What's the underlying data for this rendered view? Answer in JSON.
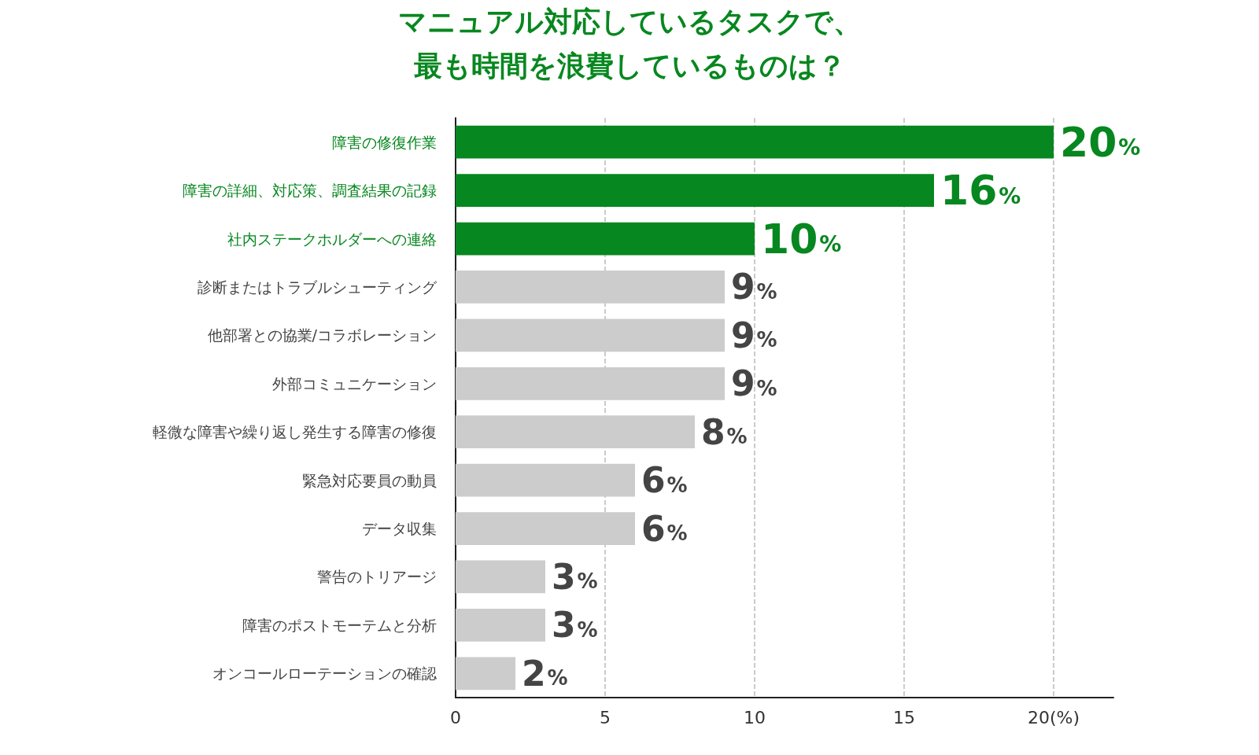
{
  "chart_data": {
    "type": "bar",
    "orientation": "horizontal",
    "title": "マニュアル対応しているタスクで、",
    "subtitle": "最も時間を浪費しているものは？",
    "categories": [
      "障害の修復作業",
      "障害の詳細、対応策、調査結果の記録",
      "社内ステークホルダーへの連絡",
      "診断またはトラブルシューティング",
      "他部署との協業/コラボレーション",
      "外部コミュニケーション",
      "軽微な障害や繰り返し発生する障害の修復",
      "緊急対応要員の動員",
      "データ収集",
      "警告のトリアージ",
      "障害のポストモーテムと分析",
      "オンコールローテーションの確認"
    ],
    "values": [
      20,
      16,
      10,
      9,
      9,
      9,
      8,
      6,
      6,
      3,
      3,
      2
    ],
    "colors": [
      "#07871f",
      "#07871f",
      "#07871f",
      "#cccccc",
      "#cccccc",
      "#cccccc",
      "#cccccc",
      "#cccccc",
      "#cccccc",
      "#cccccc",
      "#cccccc",
      "#cccccc"
    ],
    "value_labels": [
      "20%",
      "16%",
      "10%",
      "9%",
      "9%",
      "9%",
      "8%",
      "6%",
      "6%",
      "3%",
      "3%",
      "2%"
    ],
    "xlim": [
      0,
      22
    ],
    "xticks": [
      0,
      5,
      10,
      15,
      {
        "value": 20,
        "label": "20(%)"
      }
    ],
    "grid": "x"
  }
}
